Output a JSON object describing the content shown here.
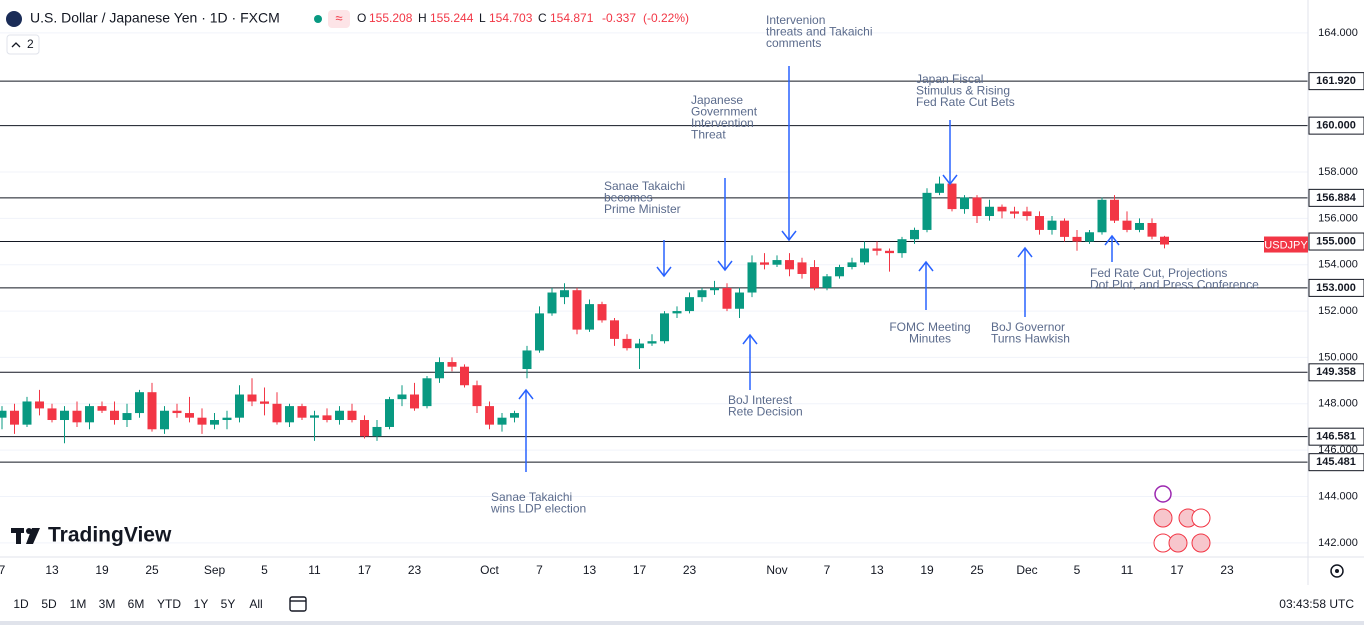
{
  "header": {
    "title": "U.S. Dollar / Japanese Yen · 1D · FXCM",
    "ohlc_labels": [
      "O",
      "H",
      "L",
      "C"
    ],
    "change": "-0.337",
    "change_pct": "(-0.22%)",
    "indicator_count": "2"
  },
  "chart_data": {
    "type": "candlestick",
    "symbol": "USDJPY",
    "up_color": "#089981",
    "down_color": "#f23645",
    "level_color": "#131722",
    "categories": [
      "7",
      null,
      null,
      null,
      "13",
      null,
      null,
      null,
      "19",
      null,
      null,
      null,
      "25",
      null,
      null,
      null,
      null,
      "Sep",
      null,
      null,
      null,
      "5",
      null,
      null,
      null,
      "11",
      null,
      null,
      null,
      "17",
      null,
      null,
      null,
      "23",
      null,
      null,
      null,
      null,
      null,
      "Oct",
      null,
      null,
      null,
      "7",
      null,
      null,
      null,
      "13",
      null,
      null,
      null,
      "17",
      null,
      null,
      null,
      "23",
      null,
      null,
      null,
      null,
      null,
      null,
      "Nov",
      null,
      null,
      null,
      "7",
      null,
      null,
      null,
      "13",
      null,
      null,
      null,
      "19",
      null,
      null,
      null,
      "25",
      null,
      null,
      null,
      "Dec",
      null,
      null,
      null,
      "5",
      null,
      null,
      null,
      "11",
      null,
      null,
      null,
      "17",
      null,
      null,
      null,
      "23"
    ],
    "open": [
      147.4,
      147.7,
      147.1,
      148.1,
      147.8,
      147.3,
      147.7,
      147.2,
      147.9,
      147.7,
      147.3,
      147.6,
      148.5,
      146.9,
      147.7,
      147.6,
      147.4,
      147.1,
      147.3,
      147.4,
      148.4,
      148.1,
      148.0,
      147.2,
      147.9,
      147.4,
      147.5,
      147.3,
      147.7,
      147.3,
      146.6,
      147.0,
      148.2,
      148.4,
      147.9,
      149.1,
      149.8,
      149.6,
      148.8,
      147.9,
      147.1,
      147.4,
      149.5,
      150.3,
      151.9,
      152.6,
      152.9,
      151.2,
      152.3,
      151.6,
      150.8,
      150.4,
      150.6,
      150.7,
      151.9,
      152.0,
      152.6,
      152.9,
      153.0,
      152.1,
      152.8,
      154.1,
      154.0,
      154.2,
      154.1,
      153.9,
      153.0,
      153.5,
      153.9,
      154.1,
      154.7,
      154.6,
      154.5,
      155.1,
      155.5,
      157.1,
      157.5,
      156.4,
      156.9,
      156.1,
      156.5,
      156.3,
      156.3,
      156.1,
      155.5,
      155.9,
      155.2,
      155.0,
      155.4,
      156.8,
      155.9,
      155.5,
      155.8,
      155.208,
      null,
      null,
      null,
      null,
      null
    ],
    "high": [
      147.9,
      148.0,
      148.3,
      148.6,
      148.0,
      147.9,
      148.1,
      148.0,
      148.1,
      148.1,
      148.0,
      148.6,
      148.9,
      147.9,
      148.0,
      148.3,
      147.8,
      147.6,
      147.7,
      148.8,
      149.1,
      148.7,
      148.5,
      148.0,
      148.0,
      147.7,
      147.8,
      147.9,
      148.0,
      147.5,
      147.3,
      148.3,
      148.8,
      148.9,
      149.2,
      150.0,
      150.0,
      149.7,
      149.0,
      148.1,
      147.6,
      147.7,
      150.5,
      152.2,
      153.0,
      153.2,
      153.0,
      152.5,
      152.4,
      151.7,
      151.0,
      150.8,
      151.0,
      152.0,
      152.2,
      152.8,
      153.0,
      153.3,
      153.2,
      153.0,
      154.4,
      154.5,
      154.4,
      154.5,
      154.3,
      154.2,
      153.6,
      154.0,
      154.3,
      155.0,
      155.0,
      154.7,
      155.2,
      155.6,
      157.3,
      157.8,
      157.5,
      157.0,
      157.0,
      156.8,
      156.6,
      156.5,
      156.5,
      156.3,
      156.1,
      156.0,
      155.5,
      155.5,
      156.9,
      157.0,
      156.3,
      156.0,
      156.0,
      155.244,
      null,
      null,
      null,
      null,
      null
    ],
    "low": [
      146.9,
      146.7,
      147.0,
      147.5,
      147.2,
      146.3,
      147.0,
      146.9,
      147.6,
      147.1,
      147.0,
      147.4,
      146.8,
      146.7,
      147.4,
      147.2,
      146.7,
      146.9,
      146.9,
      147.2,
      147.9,
      147.5,
      147.1,
      147.0,
      147.3,
      146.4,
      147.2,
      147.1,
      147.2,
      146.5,
      146.4,
      146.9,
      147.9,
      147.7,
      147.8,
      148.9,
      149.4,
      148.7,
      147.6,
      146.9,
      146.8,
      147.2,
      149.1,
      150.2,
      151.8,
      152.3,
      151.0,
      151.1,
      151.5,
      150.5,
      150.3,
      149.5,
      150.5,
      150.6,
      151.7,
      151.9,
      152.4,
      152.7,
      152.0,
      151.7,
      152.6,
      153.8,
      153.9,
      153.5,
      153.4,
      152.9,
      152.9,
      153.4,
      153.8,
      154.0,
      154.4,
      153.7,
      154.3,
      154.9,
      155.4,
      157.0,
      156.3,
      156.2,
      155.8,
      155.9,
      156.0,
      156.0,
      155.9,
      155.3,
      155.3,
      155.0,
      154.6,
      154.9,
      155.3,
      155.8,
      155.4,
      155.4,
      155.1,
      154.703,
      null,
      null,
      null,
      null,
      null
    ],
    "close": [
      147.7,
      147.1,
      148.1,
      147.8,
      147.3,
      147.7,
      147.2,
      147.9,
      147.7,
      147.3,
      147.6,
      148.5,
      146.9,
      147.7,
      147.6,
      147.4,
      147.1,
      147.3,
      147.4,
      148.4,
      148.1,
      148.0,
      147.2,
      147.9,
      147.4,
      147.5,
      147.3,
      147.7,
      147.3,
      146.6,
      147.0,
      148.2,
      148.4,
      147.8,
      149.1,
      149.8,
      149.6,
      148.8,
      147.9,
      147.1,
      147.4,
      147.6,
      150.3,
      151.9,
      152.8,
      152.9,
      151.2,
      152.3,
      151.6,
      150.8,
      150.4,
      150.6,
      150.7,
      151.9,
      152.0,
      152.6,
      152.9,
      153.0,
      152.1,
      152.8,
      154.1,
      154.0,
      154.2,
      153.8,
      153.6,
      153.0,
      153.5,
      153.9,
      154.1,
      154.7,
      154.6,
      154.5,
      155.1,
      155.5,
      157.1,
      157.5,
      156.4,
      156.9,
      156.1,
      156.5,
      156.3,
      156.2,
      156.1,
      155.5,
      155.9,
      155.2,
      155.0,
      155.4,
      156.8,
      155.9,
      155.5,
      155.8,
      155.21,
      154.871,
      null,
      null,
      null,
      null,
      null
    ],
    "ylim": [
      141.39,
      165.42
    ],
    "yticks": [
      {
        "value": 164,
        "label": "164.000"
      },
      {
        "value": 158,
        "label": "158.000"
      },
      {
        "value": 156,
        "label": "156.000"
      },
      {
        "value": 154,
        "label": "154.000"
      },
      {
        "value": 152,
        "label": "152.000"
      },
      {
        "value": 150,
        "label": "150.000"
      },
      {
        "value": 148,
        "label": "148.000"
      },
      {
        "value": 146,
        "label": "146.000"
      },
      {
        "value": 144,
        "label": "144.000"
      },
      {
        "value": 142,
        "label": "142.000"
      }
    ],
    "grid": true,
    "levels": [
      {
        "value": 161.92,
        "label": "161.920"
      },
      {
        "value": 160,
        "label": "160.000"
      },
      {
        "value": 156.884,
        "label": "156.884"
      },
      {
        "value": 155,
        "label": "155.000"
      },
      {
        "value": 153,
        "label": "153.000"
      },
      {
        "value": 149.358,
        "label": "149.358"
      },
      {
        "value": 146.581,
        "label": "146.581"
      },
      {
        "value": 145.481,
        "label": "145.481"
      }
    ],
    "annotations": [
      {
        "lines": [
          "Intervenion",
          "threats and Takaichi",
          "comments"
        ]
      },
      {
        "lines": [
          "Japanese",
          "Government",
          "Intervention",
          "Threat"
        ]
      },
      {
        "lines": [
          "Sanae Takaichi",
          "becomes",
          "Prime Minister"
        ]
      },
      {
        "lines": [
          "Japan Fiscal",
          "Stimulus & Rising",
          "Fed Rate Cut Bets"
        ]
      },
      {
        "lines": [
          "FOMC Meeting",
          "Minutes"
        ]
      },
      {
        "lines": [
          "BoJ Governor",
          "Turns Hawkish"
        ]
      },
      {
        "lines": [
          "Fed Rate Cut, Projections",
          "Dot Plot, and Press Conference"
        ]
      },
      {
        "lines": [
          "BoJ Interest",
          "Rete Decision"
        ]
      },
      {
        "lines": [
          "Sanae Takaichi",
          "wins LDP election"
        ]
      }
    ]
  },
  "branding": "TradingView",
  "toolbar": {
    "ranges": [
      "1D",
      "5D",
      "1M",
      "3M",
      "6M",
      "YTD",
      "1Y",
      "5Y",
      "All"
    ],
    "clock": "03:43:58 UTC"
  }
}
